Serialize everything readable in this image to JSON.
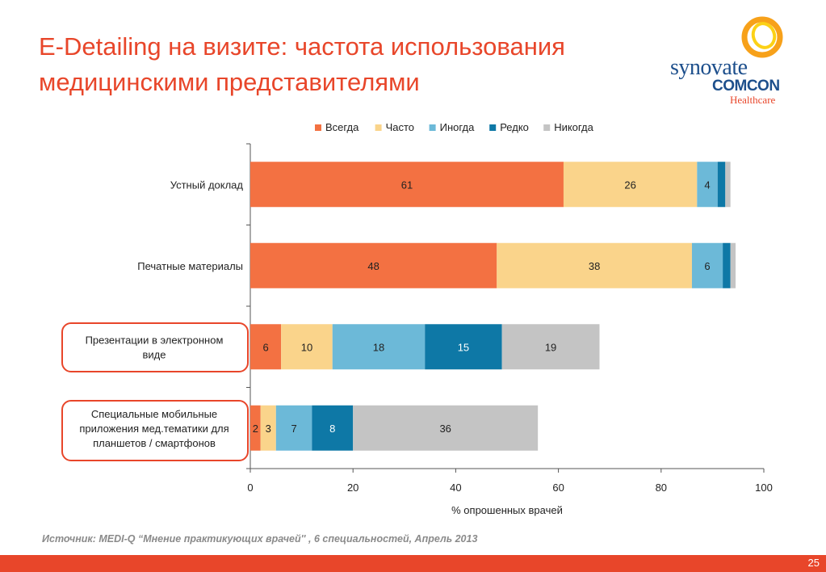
{
  "slide": {
    "title": "E-Detailing на визите: частота использования медицинскими представителями",
    "source": "Источник: MEDI-Q “Мнение практикующих врачей'' , 6 специальностей, Апрель 2013",
    "page_number": "25"
  },
  "logo": {
    "word1": "synovate",
    "word2": "COMCON",
    "word3": "Healthcare"
  },
  "colors": {
    "accent": "#e8462a",
    "logo_blue": "#1d4f8c"
  },
  "chart_data": {
    "type": "bar",
    "orientation": "horizontal",
    "stacked": true,
    "categories": [
      "Устный доклад",
      "Печатные материалы",
      "Презентации в электронном виде",
      "Специальные мобильные приложения мед.тематики для планшетов / смартфонов"
    ],
    "category_label_lines": [
      [
        "Устный доклад"
      ],
      [
        "Печатные материалы"
      ],
      [
        "Презентации в электронном",
        "виде"
      ],
      [
        "Специальные мобильные",
        "приложения мед.тематики для",
        "планшетов / смартфонов"
      ]
    ],
    "highlighted": [
      false,
      false,
      true,
      true
    ],
    "series": [
      {
        "name": "Всегда",
        "color": "#f37142",
        "values": [
          61,
          48,
          6,
          2
        ],
        "labels": [
          "61",
          "48",
          "6",
          "2"
        ]
      },
      {
        "name": "Часто",
        "color": "#fad48b",
        "values": [
          26,
          38,
          10,
          3
        ],
        "labels": [
          "26",
          "38",
          "10",
          "3"
        ]
      },
      {
        "name": "Иногда",
        "color": "#6cb9d8",
        "values": [
          4,
          6,
          18,
          7
        ],
        "labels": [
          "4",
          "6",
          "18",
          "7"
        ]
      },
      {
        "name": "Редко",
        "color": "#0e78a6",
        "values": [
          1.5,
          1.5,
          15,
          8
        ],
        "labels": [
          "",
          "",
          "15",
          "8"
        ]
      },
      {
        "name": "Никогда",
        "color": "#c4c4c4",
        "values": [
          1,
          1,
          19,
          36
        ],
        "labels": [
          "",
          "",
          "19",
          "36"
        ]
      }
    ],
    "xlabel": "% опрошенных врачей",
    "ylabel": "",
    "xlim": [
      0,
      100
    ],
    "xticks": [
      "0",
      "20",
      "40",
      "60",
      "80",
      "100"
    ],
    "legend": "top",
    "grid": false
  }
}
